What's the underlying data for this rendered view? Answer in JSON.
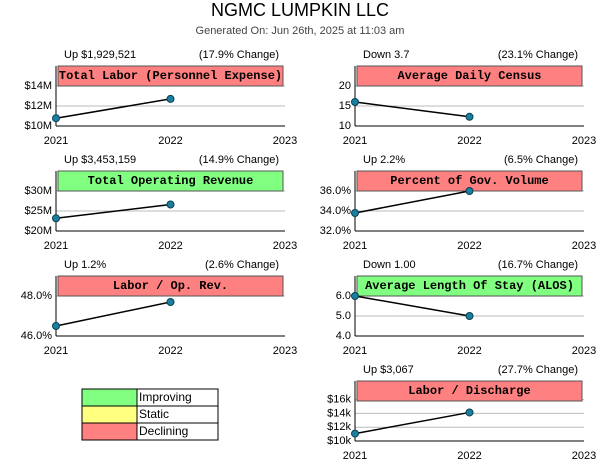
{
  "header": {
    "title": "NGMC LUMPKIN  LLC",
    "subtitle": "Generated On: Jun 26th, 2025 at 11:03 am"
  },
  "legend": {
    "items": [
      {
        "label": "Improving",
        "color": "#80ff80"
      },
      {
        "label": "Static",
        "color": "#ffff80"
      },
      {
        "label": "Declining",
        "color": "#ff8080"
      }
    ]
  },
  "chart_data": [
    {
      "type": "line",
      "title": "Total Labor (Personnel Expense)",
      "header_left": "Up $1,929,521",
      "header_right": "(17.9% Change)",
      "status_color": "#ff8080",
      "categories": [
        "2021",
        "2022",
        "2023"
      ],
      "values": [
        10780000,
        12709521,
        null
      ],
      "ylim": [
        10000000,
        16000000
      ],
      "yticks": [
        {
          "value": 10000000,
          "label": "$10M"
        },
        {
          "value": 12000000,
          "label": "$12M"
        },
        {
          "value": 14000000,
          "label": "$14M"
        }
      ]
    },
    {
      "type": "line",
      "title": "Average Daily Census",
      "header_left": "Down 3.7",
      "header_right": "(23.1% Change)",
      "status_color": "#ff8080",
      "categories": [
        "2021",
        "2022",
        "2023"
      ],
      "values": [
        16.0,
        12.3,
        null
      ],
      "ylim": [
        10,
        25
      ],
      "yticks": [
        10,
        15,
        20
      ]
    },
    {
      "type": "line",
      "title": "Total Operating Revenue",
      "header_left": "Up $3,453,159",
      "header_right": "(14.9% Change)",
      "status_color": "#80ff80",
      "categories": [
        "2021",
        "2022",
        "2023"
      ],
      "values": [
        23175000,
        26628159,
        null
      ],
      "ylim": [
        20000000,
        35000000
      ],
      "yticks": [
        {
          "value": 20000000,
          "label": "$20M"
        },
        {
          "value": 25000000,
          "label": "$25M"
        },
        {
          "value": 30000000,
          "label": "$30M"
        }
      ]
    },
    {
      "type": "line",
      "title": "Percent of Gov. Volume",
      "header_left": "Up 2.2%",
      "header_right": "(6.5% Change)",
      "status_color": "#ff8080",
      "categories": [
        "2021",
        "2022",
        "2023"
      ],
      "values": [
        33.8,
        36.0,
        null
      ],
      "ylim": [
        32,
        38
      ],
      "yticks": [
        {
          "value": 32,
          "label": "32.0%"
        },
        {
          "value": 34,
          "label": "34.0%"
        },
        {
          "value": 36,
          "label": "36.0%"
        }
      ]
    },
    {
      "type": "line",
      "title": "Labor / Op. Rev.",
      "header_left": "Up 1.2%",
      "header_right": "(2.6% Change)",
      "status_color": "#ff8080",
      "categories": [
        "2021",
        "2022",
        "2023"
      ],
      "values": [
        46.5,
        47.7,
        null
      ],
      "ylim": [
        46,
        49
      ],
      "yticks": [
        {
          "value": 46,
          "label": "46.0%"
        },
        {
          "value": 48,
          "label": "48.0%"
        }
      ]
    },
    {
      "type": "line",
      "title": "Average Length Of Stay (ALOS)",
      "header_left": "Down 1.00",
      "header_right": "(16.7% Change)",
      "status_color": "#80ff80",
      "categories": [
        "2021",
        "2022",
        "2023"
      ],
      "values": [
        6.0,
        5.0,
        null
      ],
      "ylim": [
        4,
        7
      ],
      "yticks": [
        {
          "value": 4,
          "label": "4.0"
        },
        {
          "value": 5,
          "label": "5.0"
        },
        {
          "value": 6,
          "label": "6.0"
        }
      ]
    },
    {
      "type": "line",
      "title": "Labor / Discharge",
      "header_left": "Up $3,067",
      "header_right": "(27.7% Change)",
      "status_color": "#ff8080",
      "categories": [
        "2021",
        "2022",
        "2023"
      ],
      "values": [
        11073,
        14140,
        null
      ],
      "ylim": [
        10000,
        18700
      ],
      "yticks": [
        {
          "value": 10000,
          "label": "$10k"
        },
        {
          "value": 12000,
          "label": "$12k"
        },
        {
          "value": 14000,
          "label": "$14k"
        },
        {
          "value": 16000,
          "label": "$16k"
        }
      ]
    }
  ]
}
